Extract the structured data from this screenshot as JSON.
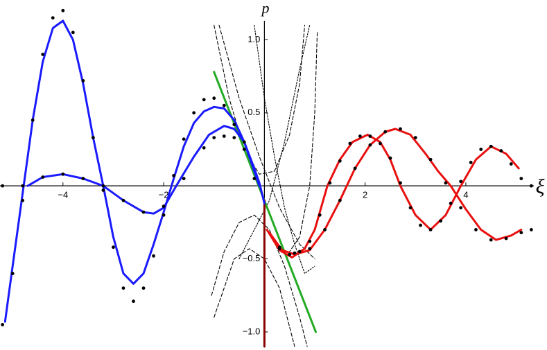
{
  "chart_data": {
    "type": "line",
    "xlabel": "ξ",
    "ylabel": "p",
    "xlim": [
      -5.25,
      5.35
    ],
    "ylim": [
      -1.1,
      1.13
    ],
    "xticks": [
      {
        "value": -4,
        "label": "−4"
      },
      {
        "value": -2,
        "label": "−2"
      },
      {
        "value": 2,
        "label": "2"
      },
      {
        "value": 4,
        "label": "4"
      }
    ],
    "yticks": [
      {
        "value": 1.0,
        "label": "1.0"
      },
      {
        "value": 0.5,
        "label": "0.5"
      },
      {
        "value": -0.5,
        "label": "−0.5"
      },
      {
        "value": -1.0,
        "label": "−1.0"
      }
    ],
    "grid": false,
    "series": [
      {
        "style": "dash",
        "color": "#000000",
        "x": [
          -1.0,
          -0.7,
          -0.4,
          -0.1,
          0.2,
          0.5,
          0.7,
          0.8
        ],
        "values": [
          1.1,
          0.6,
          0.25,
          0.08,
          0.1,
          0.35,
          0.7,
          1.1
        ]
      },
      {
        "style": "dash",
        "color": "#000000",
        "x": [
          -1.05,
          -0.8,
          -0.5,
          -0.2,
          0.1,
          0.4,
          0.7,
          0.85
        ],
        "values": [
          -0.75,
          -0.45,
          -0.25,
          -0.2,
          -0.3,
          -0.55,
          -0.9,
          -1.1
        ]
      },
      {
        "style": "dash",
        "color": "#000000",
        "x": [
          -0.9,
          -0.5,
          -0.1,
          0.3,
          0.7,
          1.0
        ],
        "values": [
          1.1,
          0.6,
          0.2,
          -0.15,
          -0.4,
          -0.5
        ]
      },
      {
        "style": "dash",
        "color": "#000000",
        "x": [
          -1.0,
          -0.6,
          -0.3,
          0.0,
          0.3,
          0.6
        ],
        "values": [
          -0.9,
          -0.5,
          -0.43,
          -0.5,
          -0.7,
          -1.1
        ]
      },
      {
        "style": "dot",
        "color": "#000000",
        "x": [
          -0.2,
          0.0,
          0.2,
          0.4,
          0.6,
          0.8,
          1.0
        ],
        "values": [
          1.1,
          0.6,
          0.2,
          -0.15,
          -0.4,
          -0.6,
          -0.55
        ]
      },
      {
        "style": "dot",
        "color": "#000000",
        "x": [
          -0.5,
          -0.2,
          0.1,
          0.4,
          0.7,
          0.9
        ],
        "values": [
          -0.5,
          -0.3,
          -0.1,
          0.3,
          0.8,
          1.1
        ]
      },
      {
        "style": "dash",
        "color": "#000000",
        "x": [
          1.05,
          1.0,
          0.9,
          0.7,
          0.5
        ],
        "values": [
          1.05,
          0.5,
          0.0,
          -0.35,
          -0.45
        ]
      },
      {
        "style": "line",
        "color": "#22aa22",
        "x": [
          -1.0,
          1.02
        ],
        "values": [
          0.78,
          -1.0
        ]
      },
      {
        "style": "line",
        "color": "#8b0000",
        "x": [
          0,
          0
        ],
        "values": [
          -0.1,
          -1.1
        ]
      },
      {
        "style": "line",
        "color": "#1a1aff",
        "x": [
          -5.15,
          -5.0,
          -4.8,
          -4.6,
          -4.4,
          -4.2,
          -4.0,
          -3.8,
          -3.6,
          -3.4,
          -3.2,
          -3.0,
          -2.8,
          -2.6,
          -2.4,
          -2.2,
          -2.0,
          -1.8,
          -1.6,
          -1.4,
          -1.2,
          -1.0,
          -0.8,
          -0.6,
          -0.4,
          -0.2,
          -0.1
        ],
        "values": [
          -0.93,
          -0.55,
          -0.05,
          0.45,
          0.85,
          1.08,
          1.13,
          1.0,
          0.7,
          0.33,
          0.0,
          -0.35,
          -0.6,
          -0.67,
          -0.6,
          -0.4,
          -0.18,
          0.05,
          0.27,
          0.43,
          0.51,
          0.54,
          0.53,
          0.45,
          0.3,
          0.1,
          0.0
        ]
      },
      {
        "style": "line",
        "color": "#1a1aff",
        "x": [
          -4.7,
          -4.4,
          -4.0,
          -3.6,
          -3.2,
          -2.8,
          -2.4,
          -2.2,
          -2.0,
          -1.75,
          -1.4,
          -1.1,
          -0.8,
          -0.6,
          -0.4,
          -0.2,
          -0.1,
          0.0
        ],
        "values": [
          0.0,
          0.06,
          0.08,
          0.05,
          0.0,
          -0.1,
          -0.18,
          -0.19,
          -0.15,
          0.0,
          0.2,
          0.35,
          0.41,
          0.39,
          0.3,
          0.12,
          0.02,
          -0.12
        ]
      },
      {
        "style": "line",
        "color": "#e8100f",
        "x": [
          0.05,
          0.3,
          0.55,
          0.8,
          1.0,
          1.25,
          1.5,
          1.75,
          2.05,
          2.3,
          2.5,
          2.7,
          3.0,
          3.3,
          3.6,
          3.9,
          4.2,
          4.5,
          4.8,
          5.05
        ],
        "values": [
          -0.3,
          -0.44,
          -0.49,
          -0.43,
          -0.3,
          0.0,
          0.18,
          0.3,
          0.35,
          0.3,
          0.18,
          0.0,
          -0.2,
          -0.3,
          -0.2,
          0.0,
          0.18,
          0.27,
          0.22,
          0.12
        ]
      },
      {
        "style": "line",
        "color": "#e8100f",
        "x": [
          0.1,
          0.35,
          0.6,
          0.9,
          1.2,
          1.5,
          1.8,
          2.1,
          2.4,
          2.6,
          2.9,
          3.2,
          3.45,
          3.7,
          4.0,
          4.3,
          4.6,
          4.9,
          5.1
        ],
        "values": [
          -0.32,
          -0.44,
          -0.47,
          -0.44,
          -0.3,
          -0.1,
          0.12,
          0.28,
          0.37,
          0.39,
          0.35,
          0.22,
          0.1,
          0.0,
          -0.16,
          -0.3,
          -0.37,
          -0.34,
          -0.3
        ]
      },
      {
        "style": "points",
        "color": "#000000",
        "x": [
          -5.2,
          -5.0,
          -4.8,
          -4.6,
          -4.4,
          -4.2,
          -4.0,
          -3.8,
          -3.6,
          -3.4,
          -3.2,
          -3.0,
          -2.8,
          -2.6,
          -2.4,
          -2.2,
          -2.0,
          -1.8,
          -1.6,
          -1.4,
          -1.2,
          -1.0,
          -0.8,
          -0.6,
          -0.4,
          -0.2
        ],
        "values": [
          -0.95,
          -0.6,
          -0.1,
          0.45,
          0.9,
          1.15,
          1.2,
          1.05,
          0.72,
          0.33,
          -0.03,
          -0.42,
          -0.7,
          -0.79,
          -0.7,
          -0.48,
          -0.2,
          0.07,
          0.32,
          0.5,
          0.59,
          0.6,
          0.55,
          0.42,
          0.25,
          0.05
        ]
      },
      {
        "style": "points",
        "color": "#000000",
        "x": [
          -5.2,
          -4.8,
          -4.4,
          -4.0,
          -3.6,
          -3.2,
          -2.8,
          -2.4,
          -2.0,
          -1.6,
          -1.2,
          -1.0,
          -0.8,
          -0.6,
          -0.4
        ],
        "values": [
          0.0,
          0.0,
          0.06,
          0.08,
          0.05,
          0.0,
          -0.1,
          -0.18,
          -0.14,
          0.05,
          0.26,
          0.33,
          0.34,
          0.33,
          0.3
        ]
      },
      {
        "style": "points",
        "color": "#000000",
        "x": [
          0.3,
          0.5,
          0.7,
          0.9,
          1.1,
          1.3,
          1.5,
          1.7,
          1.9,
          2.1,
          2.3,
          2.5,
          2.7,
          2.9,
          3.1,
          3.3,
          3.5,
          3.7,
          3.9,
          4.1,
          4.3,
          4.5,
          4.7,
          4.9,
          5.1,
          5.3
        ],
        "values": [
          -0.42,
          -0.47,
          -0.45,
          -0.38,
          -0.2,
          0.02,
          0.17,
          0.29,
          0.34,
          0.34,
          0.29,
          0.19,
          0.02,
          -0.15,
          -0.27,
          -0.3,
          -0.24,
          -0.12,
          0.03,
          0.16,
          0.25,
          0.27,
          0.24,
          0.15,
          0.05,
          0.0
        ]
      },
      {
        "style": "points",
        "color": "#000000",
        "x": [
          0.3,
          0.6,
          0.9,
          1.2,
          1.5,
          1.8,
          2.1,
          2.4,
          2.7,
          3.0,
          3.3,
          3.6,
          3.9,
          4.2,
          4.5,
          4.8,
          5.1,
          5.3
        ],
        "values": [
          -0.43,
          -0.46,
          -0.43,
          -0.3,
          -0.1,
          0.12,
          0.28,
          0.37,
          0.39,
          0.33,
          0.18,
          0.02,
          -0.15,
          -0.3,
          -0.37,
          -0.36,
          -0.32,
          -0.3
        ]
      }
    ]
  }
}
